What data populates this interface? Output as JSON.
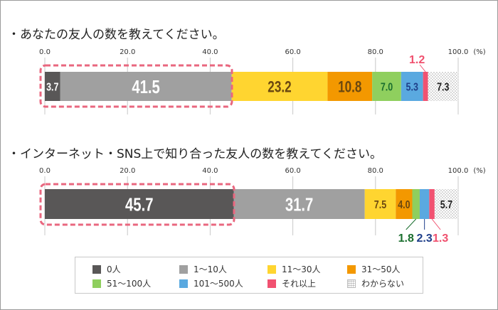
{
  "chart_data": [
    {
      "type": "bar",
      "orientation": "horizontal-stacked-100",
      "title": "・あなたの友人の数を教えてください。",
      "unit": "(%)",
      "xlim": [
        0,
        100
      ],
      "ticks": [
        "0.0",
        "20.0",
        "40.0",
        "60.0",
        "80.0",
        "100.0"
      ],
      "categories": [
        "0人",
        "1〜10人",
        "11〜30人",
        "31〜50人",
        "51〜100人",
        "101〜500人",
        "それ以上",
        "わからない"
      ],
      "values": [
        3.7,
        41.5,
        23.2,
        10.8,
        7.0,
        5.3,
        1.2,
        7.3
      ],
      "labels": [
        "3.7",
        "41.5",
        "23.2",
        "10.8",
        "7.0",
        "5.3",
        "1.2",
        "7.3"
      ],
      "highlight_segments": [
        0,
        1
      ]
    },
    {
      "type": "bar",
      "orientation": "horizontal-stacked-100",
      "title": "・インターネット・SNS上で知り合った友人の数を教えてください。",
      "unit": "(%)",
      "xlim": [
        0,
        100
      ],
      "ticks": [
        "0.0",
        "20.0",
        "40.0",
        "60.0",
        "80.0",
        "100.0"
      ],
      "categories": [
        "0人",
        "1〜10人",
        "11〜30人",
        "31〜50人",
        "51〜100人",
        "101〜500人",
        "それ以上",
        "わからない"
      ],
      "values": [
        45.7,
        31.7,
        7.5,
        4.0,
        1.8,
        2.3,
        1.3,
        5.7
      ],
      "labels": [
        "45.7",
        "31.7",
        "7.5",
        "4.0",
        "1.8",
        "2.3",
        "1.3",
        "5.7"
      ],
      "highlight_segments": [
        0
      ]
    }
  ],
  "legend": {
    "placement": "bottom",
    "items": [
      {
        "label": "0人",
        "color": "#595757"
      },
      {
        "label": "1〜10人",
        "color": "#a0a0a0"
      },
      {
        "label": "11〜30人",
        "color": "#ffd530"
      },
      {
        "label": "31〜50人",
        "color": "#f39800"
      },
      {
        "label": "51〜100人",
        "color": "#8fcf5e"
      },
      {
        "label": "101〜500人",
        "color": "#5aa9e0"
      },
      {
        "label": "それ以上",
        "color": "#f15271"
      },
      {
        "label": "わからない",
        "color": "dotted"
      }
    ]
  },
  "label_colors": [
    "#ffffff",
    "#ffffff",
    "#6b4810",
    "#6b4810",
    "#1a6e2e",
    "#1f3f8a",
    "#f0506e",
    "#222222"
  ],
  "highlight_color": "#e9677f"
}
